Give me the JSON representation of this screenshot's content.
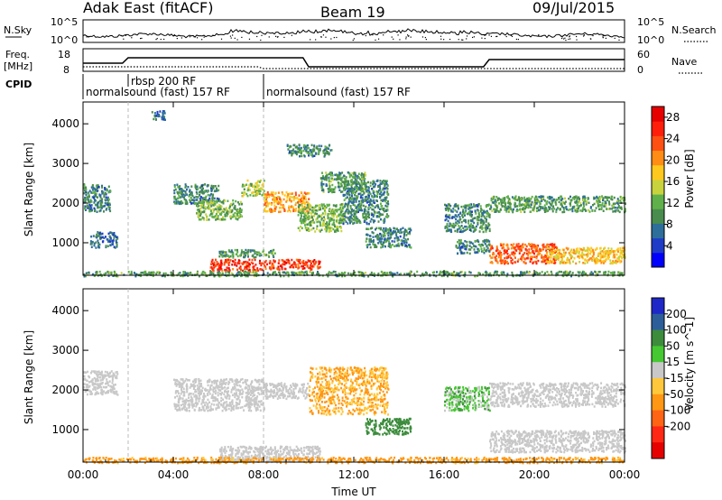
{
  "header": {
    "title_left": "Adak East (fitACF)",
    "title_center": "Beam 19",
    "title_right": "09/Jul/2015"
  },
  "noise_panel": {
    "left_label": "N.Sky",
    "right_label": "N.Search",
    "left_ticks": [
      "10^5",
      "10^0"
    ],
    "right_ticks": [
      "10^5",
      "10^0"
    ]
  },
  "freq_panel": {
    "left_label_line1": "Freq.",
    "left_label_line2": "[MHz]",
    "right_label": "Nave",
    "left_ticks": [
      "18",
      "8"
    ],
    "right_ticks": [
      "60",
      "0"
    ]
  },
  "cpid_panel": {
    "label": "CPID",
    "segments": [
      {
        "start_hour": 0,
        "text": "normalsound (fast) 157 RF"
      },
      {
        "start_hour": 2,
        "text": "rbsp 200 RF"
      },
      {
        "start_hour": 8,
        "text": "normalsound (fast) 157 RF"
      }
    ]
  },
  "x_axis": {
    "label": "Time UT",
    "ticks": [
      "00:00",
      "04:00",
      "08:00",
      "12:00",
      "16:00",
      "20:00",
      "00:00"
    ]
  },
  "chart_data": [
    {
      "type": "heatmap",
      "name": "power",
      "ylabel": "Slant Range [km]",
      "yticks": [
        1000,
        2000,
        3000,
        4000
      ],
      "ylim": [
        180,
        4550
      ],
      "xlim_hours": [
        0,
        24
      ],
      "colorbar": {
        "label": "Power [dB]",
        "ticks": [
          4,
          8,
          12,
          16,
          20,
          24,
          28
        ],
        "range": [
          0,
          30
        ],
        "colors": [
          "#0000ff",
          "#1e3cc8",
          "#2e6e9a",
          "#4a8c4e",
          "#5fb04a",
          "#c8d23c",
          "#ffc81e",
          "#ff8c14",
          "#ff5014",
          "#ff1e0a",
          "#e60000"
        ]
      },
      "regions": [
        {
          "t": [
            0.0,
            1.2
          ],
          "r": [
            1800,
            2500
          ],
          "v": 8
        },
        {
          "t": [
            0.3,
            1.5
          ],
          "r": [
            900,
            1300
          ],
          "v": 6
        },
        {
          "t": [
            3.0,
            3.6
          ],
          "r": [
            4100,
            4350
          ],
          "v": 6
        },
        {
          "t": [
            4.0,
            6.0
          ],
          "r": [
            2000,
            2500
          ],
          "v": 8
        },
        {
          "t": [
            5.0,
            7.0
          ],
          "r": [
            1600,
            2100
          ],
          "v": 12
        },
        {
          "t": [
            5.6,
            8.0
          ],
          "r": [
            300,
            600
          ],
          "v": 26
        },
        {
          "t": [
            6.0,
            8.5
          ],
          "r": [
            650,
            850
          ],
          "v": 10
        },
        {
          "t": [
            7.0,
            8.0
          ],
          "r": [
            2200,
            2600
          ],
          "v": 14
        },
        {
          "t": [
            8.0,
            10.0
          ],
          "r": [
            1800,
            2300
          ],
          "v": 20
        },
        {
          "t": [
            8.0,
            10.5
          ],
          "r": [
            350,
            600
          ],
          "v": 26
        },
        {
          "t": [
            9.5,
            11.5
          ],
          "r": [
            1300,
            2000
          ],
          "v": 12
        },
        {
          "t": [
            10.5,
            12.5
          ],
          "r": [
            2300,
            2800
          ],
          "v": 10
        },
        {
          "t": [
            11.5,
            13.5
          ],
          "r": [
            1500,
            2600
          ],
          "v": 8
        },
        {
          "t": [
            12.5,
            14.5
          ],
          "r": [
            900,
            1400
          ],
          "v": 8
        },
        {
          "t": [
            9.0,
            11.0
          ],
          "r": [
            3200,
            3500
          ],
          "v": 8
        },
        {
          "t": [
            16.0,
            18.0
          ],
          "r": [
            1300,
            2000
          ],
          "v": 8
        },
        {
          "t": [
            18.0,
            24.0
          ],
          "r": [
            1800,
            2200
          ],
          "v": 10
        },
        {
          "t": [
            16.5,
            18.0
          ],
          "r": [
            750,
            1100
          ],
          "v": 8
        },
        {
          "t": [
            18.0,
            21.0
          ],
          "r": [
            500,
            1000
          ],
          "v": 24
        },
        {
          "t": [
            20.5,
            24.0
          ],
          "r": [
            500,
            900
          ],
          "v": 18
        },
        {
          "t": [
            0.0,
            24.0
          ],
          "r": [
            180,
            300
          ],
          "v": 10
        }
      ]
    },
    {
      "type": "heatmap",
      "name": "velocity",
      "ylabel": "Slant Range [km]",
      "yticks": [
        1000,
        2000,
        3000,
        4000
      ],
      "ylim": [
        180,
        4550
      ],
      "xlim_hours": [
        0,
        24
      ],
      "colorbar": {
        "label": "Velocity [m s^-1]",
        "ticks": [
          200,
          100,
          50,
          15,
          -15,
          -50,
          -100,
          -200
        ],
        "colors": [
          "#1e28c8",
          "#2e5e9a",
          "#3c8c3c",
          "#46c832",
          "#c8c8c8",
          "#ffc83c",
          "#ff9614",
          "#ff6414",
          "#ff2814",
          "#e60000"
        ]
      },
      "regions": [
        {
          "t": [
            0.0,
            1.5
          ],
          "r": [
            1900,
            2500
          ],
          "v": 0
        },
        {
          "t": [
            4.0,
            8.0
          ],
          "r": [
            1500,
            2300
          ],
          "v": 0
        },
        {
          "t": [
            8.0,
            10.0
          ],
          "r": [
            1800,
            2200
          ],
          "v": 0
        },
        {
          "t": [
            10.0,
            13.5
          ],
          "r": [
            1400,
            2600
          ],
          "v": -30
        },
        {
          "t": [
            12.5,
            14.5
          ],
          "r": [
            900,
            1300
          ],
          "v": 60
        },
        {
          "t": [
            6.0,
            10.5
          ],
          "r": [
            200,
            600
          ],
          "v": 0
        },
        {
          "t": [
            16.0,
            18.0
          ],
          "r": [
            1500,
            2100
          ],
          "v": 20
        },
        {
          "t": [
            18.0,
            24.0
          ],
          "r": [
            1600,
            2200
          ],
          "v": 0
        },
        {
          "t": [
            18.0,
            24.0
          ],
          "r": [
            450,
            1000
          ],
          "v": 0
        },
        {
          "t": [
            0.0,
            24.0
          ],
          "r": [
            180,
            320
          ],
          "v": -40
        }
      ]
    }
  ]
}
